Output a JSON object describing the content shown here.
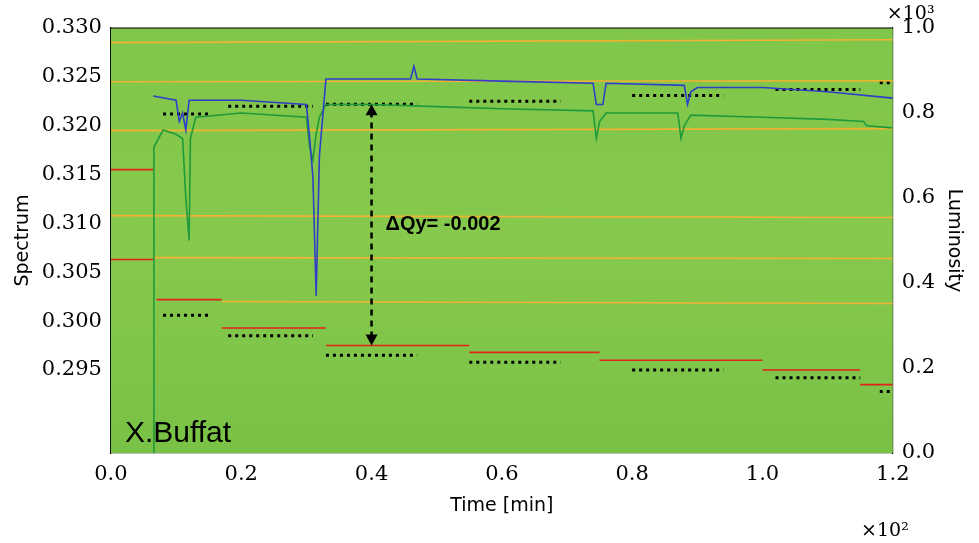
{
  "chart_data": {
    "type": "line",
    "x_label": "Time [min]",
    "y_label": "Spectrum",
    "y2_label": "Luminosity",
    "x_scale_label": "×10²",
    "y2_scale_label": "×10³",
    "xlim": [
      0,
      1.2
    ],
    "xticks": [
      {
        "value": 0,
        "label": "0.0"
      },
      0.2,
      0.4,
      0.6,
      0.8,
      {
        "value": 1,
        "label": "1.0"
      },
      1.2
    ],
    "ylim": [
      0.2865,
      0.33
    ],
    "yticks": [
      0.295,
      {
        "value": 0.3,
        "label": "0.300"
      },
      0.305,
      {
        "value": 0.31,
        "label": "0.310"
      },
      0.315,
      {
        "value": 0.32,
        "label": "0.320"
      },
      0.325,
      {
        "value": 0.33,
        "label": "0.330"
      }
    ],
    "y2lim": [
      0,
      1
    ],
    "y2ticks": [
      {
        "value": 0,
        "label": "0.0"
      },
      0.2,
      0.4,
      0.6,
      0.8,
      {
        "value": 1,
        "label": "1.0"
      }
    ],
    "grid": false,
    "annotations": [
      {
        "text": "ΔQy= -0.002",
        "x": 0.4,
        "y_from": 0.2975,
        "y_to": 0.3222
      },
      {
        "text": "X.Buffat"
      }
    ],
    "series": [
      {
        "color": "#f2b233",
        "line_style": "solid",
        "x": [
          0,
          1.2,
          1.2,
          0,
          1.2,
          1.2,
          0,
          1.2,
          1.2,
          0,
          1.2,
          1.2,
          0.065,
          1.2,
          1.2,
          0.17,
          1.2
        ],
        "values": [
          0.3285,
          0.3288,
          null,
          0.3245,
          0.3246,
          null,
          0.3195,
          0.3197,
          null,
          0.3108,
          0.3106,
          null,
          0.3065,
          0.3064,
          null,
          0.302,
          0.3018
        ]
      },
      {
        "color": "#e2231a",
        "line_style": "solid",
        "x": [
          0,
          0.065,
          0.065,
          0,
          0.065,
          0.065,
          0.07,
          0.17,
          0.17,
          0.17,
          0.33,
          0.33,
          0.33,
          0.55,
          0.55,
          0.55,
          0.75,
          0.75,
          0.75,
          1.0,
          1.0,
          1.0,
          1.15,
          1.15,
          1.15,
          1.2
        ],
        "values": [
          0.3155,
          0.3155,
          null,
          0.3063,
          0.3063,
          null,
          0.3022,
          0.3022,
          null,
          0.2993,
          0.2993,
          null,
          0.2975,
          0.2975,
          null,
          0.2968,
          0.2968,
          null,
          0.296,
          0.296,
          null,
          0.295,
          0.295,
          null,
          0.2935,
          0.2935
        ]
      },
      {
        "color": "#000000",
        "line_style": "dotted",
        "x": [
          0.08,
          0.15,
          0.15,
          0.18,
          0.31,
          0.31,
          0.33,
          0.47,
          0.47,
          0.55,
          0.69,
          0.69,
          0.8,
          0.94,
          0.94,
          1.02,
          1.15,
          1.15,
          1.18,
          1.2,
          1.2,
          0.08,
          0.15,
          0.15,
          0.18,
          0.31,
          0.31,
          0.33,
          0.47,
          0.47,
          0.55,
          0.69,
          0.69,
          0.8,
          0.94,
          0.94,
          1.02,
          1.15,
          1.15,
          1.18,
          1.2
        ],
        "values": [
          0.3006,
          0.3006,
          null,
          0.2985,
          0.2985,
          null,
          0.2965,
          0.2965,
          null,
          0.2958,
          0.2958,
          null,
          0.295,
          0.295,
          null,
          0.2942,
          0.2942,
          null,
          0.2928,
          0.2928,
          null,
          0.3212,
          0.3212,
          null,
          0.322,
          0.322,
          null,
          0.3222,
          0.3222,
          null,
          0.3225,
          0.3225,
          null,
          0.3231,
          0.3231,
          null,
          0.3237,
          0.3237,
          null,
          0.3244,
          0.3244
        ]
      },
      {
        "color": "#2f3fc8",
        "line_style": "solid",
        "axis": "y2",
        "x": [
          0.065,
          0.1,
          0.105,
          0.11,
          0.115,
          0.12,
          0.2,
          0.3,
          0.305,
          0.31,
          0.315,
          0.32,
          0.33,
          0.46,
          0.465,
          0.47,
          0.6,
          0.74,
          0.745,
          0.755,
          0.76,
          0.88,
          0.885,
          0.89,
          0.9,
          1.0,
          1.1,
          1.2
        ],
        "values": [
          0.84,
          0.83,
          0.78,
          0.8,
          0.76,
          0.83,
          0.83,
          0.82,
          0.74,
          0.65,
          0.37,
          0.7,
          0.88,
          0.88,
          0.91,
          0.88,
          0.875,
          0.87,
          0.82,
          0.82,
          0.87,
          0.865,
          0.82,
          0.85,
          0.86,
          0.86,
          0.85,
          0.835
        ]
      },
      {
        "color": "#1f9a3a",
        "line_style": "solid",
        "axis": "y2",
        "x": [
          0.065,
          0.066,
          0.08,
          0.1,
          0.11,
          0.115,
          0.12,
          0.122,
          0.13,
          0.2,
          0.3,
          0.305,
          0.31,
          0.315,
          0.32,
          0.33,
          0.4,
          0.5,
          0.6,
          0.74,
          0.745,
          0.75,
          0.76,
          0.87,
          0.875,
          0.88,
          0.89,
          1.0,
          1.1,
          1.155,
          1.16,
          1.2
        ],
        "values": [
          0,
          0.72,
          0.76,
          0.75,
          0.74,
          0.6,
          0.5,
          0.74,
          0.79,
          0.8,
          0.79,
          0.72,
          0.69,
          0.75,
          0.79,
          0.82,
          0.82,
          0.815,
          0.81,
          0.805,
          0.74,
          0.78,
          0.8,
          0.8,
          0.74,
          0.77,
          0.795,
          0.79,
          0.785,
          0.78,
          0.77,
          0.765
        ]
      }
    ]
  }
}
